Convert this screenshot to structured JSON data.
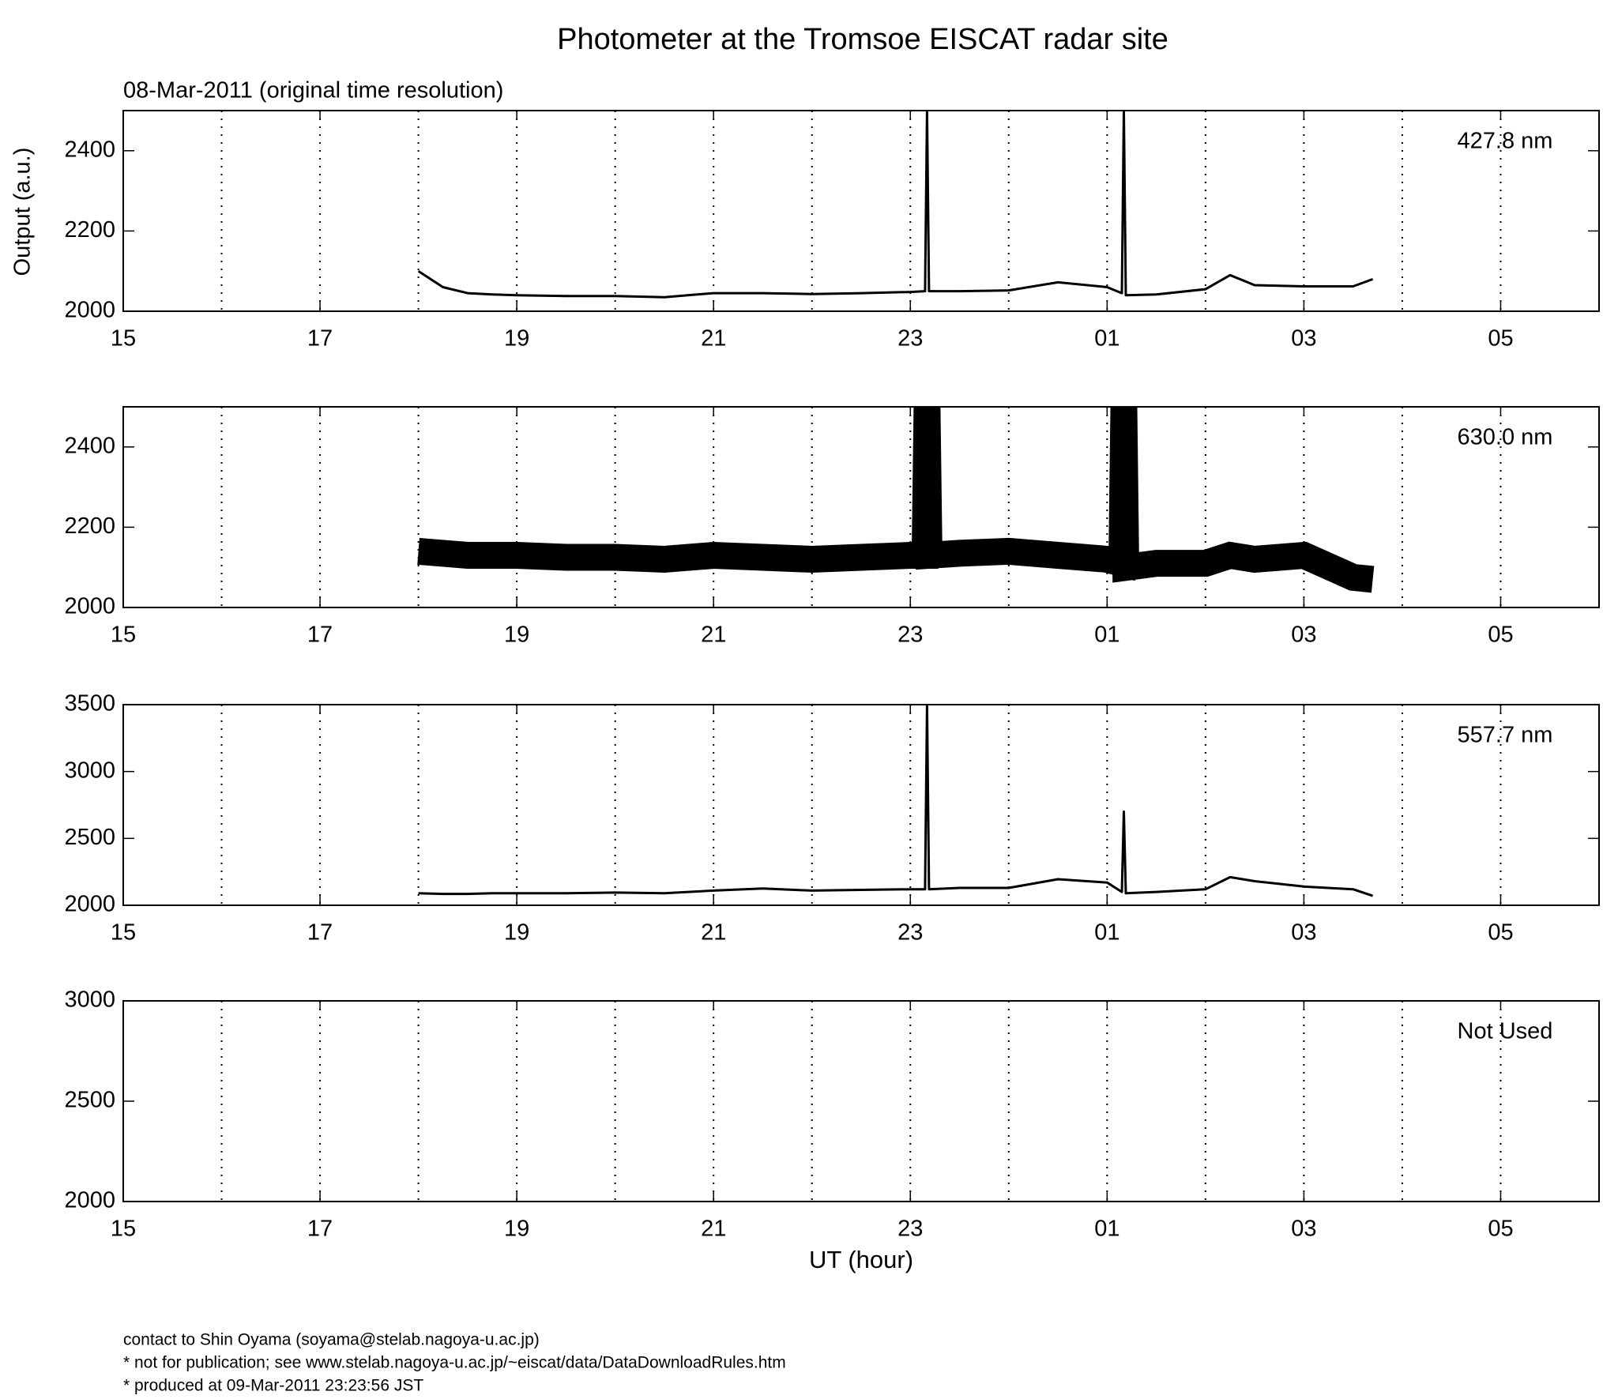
{
  "header": {
    "title": "Photometer at the Tromsoe EISCAT radar site",
    "subtitle": "08-Mar-2011 (original time resolution)",
    "ylabel": "Output (a.u.)",
    "xlabel": "UT (hour)"
  },
  "footer": [
    "contact to Shin Oyama (soyama@stelab.nagoya-u.ac.jp)",
    "* not for publication; see www.stelab.nagoya-u.ac.jp/~eiscat/data/DataDownloadRules.htm",
    "* produced at 09-Mar-2011 23:23:56 JST"
  ],
  "chart_data": [
    {
      "type": "line",
      "annotation": "427.8 nm",
      "x": [
        18,
        18.25,
        18.5,
        18.75,
        19,
        19.5,
        20,
        20.5,
        21,
        21.5,
        22,
        22.5,
        23,
        23.15,
        23.17,
        23.19,
        23.5,
        24,
        24.5,
        25,
        25.15,
        25.17,
        25.19,
        25.5,
        26,
        26.25,
        26.5,
        27,
        27.5,
        27.7
      ],
      "series": [
        {
          "color": "#000000",
          "values": [
            2100,
            2060,
            2045,
            2042,
            2040,
            2038,
            2038,
            2035,
            2045,
            2045,
            2043,
            2045,
            2048,
            2050,
            2500,
            2050,
            2050,
            2052,
            2072,
            2060,
            2045,
            2500,
            2040,
            2042,
            2055,
            2090,
            2065,
            2062,
            2062,
            2080
          ]
        }
      ],
      "xlim": [
        15,
        30
      ],
      "xticks": [
        15,
        17,
        19,
        21,
        23,
        {
          "value": 25,
          "label": "01"
        },
        {
          "value": 27,
          "label": "03"
        },
        {
          "value": 29,
          "label": "05"
        }
      ],
      "xminor": [
        16,
        18,
        20,
        22,
        24,
        26,
        28
      ],
      "ylim": [
        2000,
        2500
      ],
      "yticks": [
        2000,
        2200,
        2400
      ],
      "grid": true
    },
    {
      "type": "line",
      "annotation": "630.0 nm",
      "x": [
        18,
        18.25,
        18.5,
        18.75,
        19,
        19.5,
        20,
        20.5,
        21,
        21.5,
        22,
        22.5,
        23,
        23.15,
        23.17,
        23.19,
        23.5,
        24,
        24.5,
        25,
        25.15,
        25.17,
        25.19,
        25.5,
        26,
        26.25,
        26.5,
        27,
        27.5,
        27.7
      ],
      "series": [
        {
          "color": "#000000",
          "values": [
            2140,
            2135,
            2130,
            2130,
            2130,
            2125,
            2125,
            2120,
            2130,
            2125,
            2120,
            2125,
            2130,
            2130,
            2500,
            2130,
            2135,
            2140,
            2130,
            2120,
            2110,
            2500,
            2100,
            2110,
            2110,
            2130,
            2120,
            2130,
            2075,
            2070
          ]
        }
      ],
      "xlim": [
        15,
        30
      ],
      "xticks": [
        15,
        17,
        19,
        21,
        23,
        {
          "value": 25,
          "label": "01"
        },
        {
          "value": 27,
          "label": "03"
        },
        {
          "value": 29,
          "label": "05"
        }
      ],
      "xminor": [
        16,
        18,
        20,
        22,
        24,
        26,
        28
      ],
      "ylim": [
        2000,
        2500
      ],
      "yticks": [
        2000,
        2200,
        2400
      ],
      "grid": true
    },
    {
      "type": "line",
      "annotation": "557.7 nm",
      "x": [
        18,
        18.25,
        18.5,
        18.75,
        19,
        19.5,
        20,
        20.5,
        21,
        21.5,
        22,
        22.5,
        23,
        23.15,
        23.17,
        23.19,
        23.5,
        24,
        24.5,
        25,
        25.15,
        25.17,
        25.19,
        25.5,
        26,
        26.25,
        26.5,
        27,
        27.5,
        27.7
      ],
      "series": [
        {
          "color": "#000000",
          "values": [
            2090,
            2085,
            2085,
            2090,
            2090,
            2090,
            2095,
            2090,
            2110,
            2125,
            2110,
            2115,
            2120,
            2120,
            3500,
            2120,
            2130,
            2130,
            2195,
            2170,
            2100,
            2700,
            2090,
            2100,
            2120,
            2210,
            2180,
            2140,
            2120,
            2070
          ]
        }
      ],
      "xlim": [
        15,
        30
      ],
      "xticks": [
        15,
        17,
        19,
        21,
        23,
        {
          "value": 25,
          "label": "01"
        },
        {
          "value": 27,
          "label": "03"
        },
        {
          "value": 29,
          "label": "05"
        }
      ],
      "xminor": [
        16,
        18,
        20,
        22,
        24,
        26,
        28
      ],
      "ylim": [
        2000,
        3500
      ],
      "yticks": [
        2000,
        2500,
        3000,
        3500
      ],
      "grid": true
    },
    {
      "type": "line",
      "annotation": "Not Used",
      "x": [],
      "series": [],
      "xlim": [
        15,
        30
      ],
      "xticks": [
        15,
        17,
        19,
        21,
        23,
        {
          "value": 25,
          "label": "01"
        },
        {
          "value": 27,
          "label": "03"
        },
        {
          "value": 29,
          "label": "05"
        }
      ],
      "xminor": [
        16,
        18,
        20,
        22,
        24,
        26,
        28
      ],
      "ylim": [
        2000,
        3000
      ],
      "yticks": [
        2000,
        2500,
        3000
      ],
      "grid": true
    }
  ]
}
